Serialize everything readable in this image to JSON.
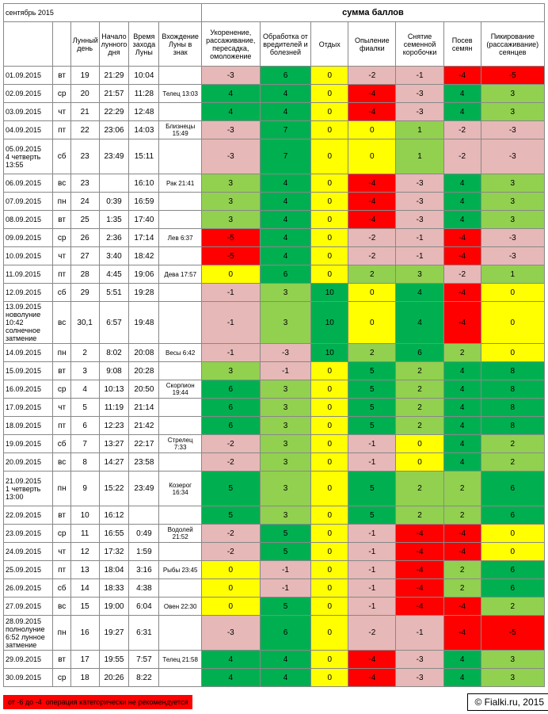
{
  "month_title": "сентябрь 2015",
  "score_title": "сумма баллов",
  "headers": [
    "Лунный день",
    "Начало лунного дня",
    "Время захода Луны",
    "Вхождение Луны в знак",
    "Укоренение, рассаживание, пересадка, омоложение",
    "Обработка от вредителей и болезней",
    "Отдых",
    "Опыление фиалки",
    "Снятие семенной коробочки",
    "Посев семян",
    "Пикирование (рассаживание) сеянцев"
  ],
  "rows": [
    {
      "date": "01.09.2015",
      "dow": "вт",
      "d": "19",
      "t1": "21:29",
      "t2": "10:04",
      "sign": "",
      "v": [
        -3,
        6,
        0,
        -2,
        -1,
        -4,
        -5
      ]
    },
    {
      "date": "02.09.2015",
      "dow": "ср",
      "d": "20",
      "t1": "21:57",
      "t2": "11:28",
      "sign": "Телец 13:03",
      "v": [
        4,
        4,
        0,
        -4,
        -3,
        4,
        3
      ]
    },
    {
      "date": "03.09.2015",
      "dow": "чт",
      "d": "21",
      "t1": "22:29",
      "t2": "12:48",
      "sign": "",
      "v": [
        4,
        4,
        0,
        -4,
        -3,
        4,
        3
      ]
    },
    {
      "date": "04.09.2015",
      "dow": "пт",
      "d": "22",
      "t1": "23:06",
      "t2": "14:03",
      "sign": "Близнецы 15:49",
      "v": [
        -3,
        7,
        0,
        0,
        1,
        -2,
        -3
      ]
    },
    {
      "date": "05.09.2015\n4 четверть 13:55",
      "dow": "сб",
      "d": "23",
      "t1": "23:49",
      "t2": "15:11",
      "sign": "",
      "v": [
        -3,
        7,
        0,
        0,
        1,
        -2,
        -3
      ]
    },
    {
      "date": "06.09.2015",
      "dow": "вс",
      "d": "23",
      "t1": "",
      "t2": "16:10",
      "sign": "Рак 21:41",
      "v": [
        3,
        4,
        0,
        -4,
        -3,
        4,
        3
      ]
    },
    {
      "date": "07.09.2015",
      "dow": "пн",
      "d": "24",
      "t1": "0:39",
      "t2": "16:59",
      "sign": "",
      "v": [
        3,
        4,
        0,
        -4,
        -3,
        4,
        3
      ]
    },
    {
      "date": "08.09.2015",
      "dow": "вт",
      "d": "25",
      "t1": "1:35",
      "t2": "17:40",
      "sign": "",
      "v": [
        3,
        4,
        0,
        -4,
        -3,
        4,
        3
      ]
    },
    {
      "date": "09.09.2015",
      "dow": "ср",
      "d": "26",
      "t1": "2:36",
      "t2": "17:14",
      "sign": "Лев 6:37",
      "v": [
        -5,
        4,
        0,
        -2,
        -1,
        -4,
        -3
      ]
    },
    {
      "date": "10.09.2015",
      "dow": "чт",
      "d": "27",
      "t1": "3:40",
      "t2": "18:42",
      "sign": "",
      "v": [
        -5,
        4,
        0,
        -2,
        -1,
        -4,
        -3
      ]
    },
    {
      "date": "11.09.2015",
      "dow": "пт",
      "d": "28",
      "t1": "4:45",
      "t2": "19:06",
      "sign": "Дева 17:57",
      "v": [
        0,
        6,
        0,
        2,
        3,
        -2,
        1
      ]
    },
    {
      "date": "12.09.2015",
      "dow": "сб",
      "d": "29",
      "t1": "5:51",
      "t2": "19:28",
      "sign": "",
      "v": [
        -1,
        3,
        10,
        0,
        4,
        -4,
        0
      ]
    },
    {
      "date": "13.09.2015\nноволуние 10:42 солнечное затмение",
      "dow": "вс",
      "d": "30,1",
      "t1": "6:57",
      "t2": "19:48",
      "sign": "",
      "v": [
        -1,
        3,
        10,
        0,
        4,
        -4,
        0
      ]
    },
    {
      "date": "14.09.2015",
      "dow": "пн",
      "d": "2",
      "t1": "8:02",
      "t2": "20:08",
      "sign": "Весы 6:42",
      "v": [
        -1,
        -3,
        10,
        2,
        6,
        2,
        0
      ]
    },
    {
      "date": "15.09.2015",
      "dow": "вт",
      "d": "3",
      "t1": "9:08",
      "t2": "20:28",
      "sign": "",
      "v": [
        3,
        -1,
        0,
        5,
        2,
        4,
        8
      ]
    },
    {
      "date": "16.09.2015",
      "dow": "ср",
      "d": "4",
      "t1": "10:13",
      "t2": "20:50",
      "sign": "Скорпион 19:44",
      "v": [
        6,
        3,
        0,
        5,
        2,
        4,
        8
      ]
    },
    {
      "date": "17.09.2015",
      "dow": "чт",
      "d": "5",
      "t1": "11:19",
      "t2": "21:14",
      "sign": "",
      "v": [
        6,
        3,
        0,
        5,
        2,
        4,
        8
      ]
    },
    {
      "date": "18.09.2015",
      "dow": "пт",
      "d": "6",
      "t1": "12:23",
      "t2": "21:42",
      "sign": "",
      "v": [
        6,
        3,
        0,
        5,
        2,
        4,
        8
      ]
    },
    {
      "date": "19.09.2015",
      "dow": "сб",
      "d": "7",
      "t1": "13:27",
      "t2": "22:17",
      "sign": "Стрелец 7:33",
      "v": [
        -2,
        3,
        0,
        -1,
        0,
        4,
        2
      ]
    },
    {
      "date": "20.09.2015",
      "dow": "вс",
      "d": "8",
      "t1": "14:27",
      "t2": "23:58",
      "sign": "",
      "v": [
        -2,
        3,
        0,
        -1,
        0,
        4,
        2
      ]
    },
    {
      "date": "21.09.2015\n1 четверть 13:00",
      "dow": "пн",
      "d": "9",
      "t1": "15:22",
      "t2": "23:49",
      "sign": "Козерог 16:34",
      "v": [
        5,
        3,
        0,
        5,
        2,
        2,
        6
      ]
    },
    {
      "date": "22.09.2015",
      "dow": "вт",
      "d": "10",
      "t1": "16:12",
      "t2": "",
      "sign": "",
      "v": [
        5,
        3,
        0,
        5,
        2,
        2,
        6
      ]
    },
    {
      "date": "23.09.2015",
      "dow": "ср",
      "d": "11",
      "t1": "16:55",
      "t2": "0:49",
      "sign": "Водолей 21:52",
      "v": [
        -2,
        5,
        0,
        -1,
        -4,
        -4,
        0
      ]
    },
    {
      "date": "24.09.2015",
      "dow": "чт",
      "d": "12",
      "t1": "17:32",
      "t2": "1:59",
      "sign": "",
      "v": [
        -2,
        5,
        0,
        -1,
        -4,
        -4,
        0
      ]
    },
    {
      "date": "25.09.2015",
      "dow": "пт",
      "d": "13",
      "t1": "18:04",
      "t2": "3:16",
      "sign": "Рыбы 23:45",
      "v": [
        0,
        -1,
        0,
        -1,
        -4,
        2,
        6
      ]
    },
    {
      "date": "26.09.2015",
      "dow": "сб",
      "d": "14",
      "t1": "18:33",
      "t2": "4:38",
      "sign": "",
      "v": [
        0,
        -1,
        0,
        -1,
        -4,
        2,
        6
      ]
    },
    {
      "date": "27.09.2015",
      "dow": "вс",
      "d": "15",
      "t1": "19:00",
      "t2": "6:04",
      "sign": "Овен 22:30",
      "v": [
        0,
        5,
        0,
        -1,
        -4,
        -4,
        2
      ]
    },
    {
      "date": "28.09.2015\nполнолуние 6:52 лунное затмение",
      "dow": "пн",
      "d": "16",
      "t1": "19:27",
      "t2": "6:31",
      "sign": "",
      "v": [
        -3,
        6,
        0,
        -2,
        -1,
        -4,
        -5
      ]
    },
    {
      "date": "29.09.2015",
      "dow": "вт",
      "d": "17",
      "t1": "19:55",
      "t2": "7:57",
      "sign": "Телец 21:58",
      "v": [
        4,
        4,
        0,
        -4,
        -3,
        4,
        3
      ]
    },
    {
      "date": "30.09.2015",
      "dow": "ср",
      "d": "18",
      "t1": "20:26",
      "t2": "8:22",
      "sign": "",
      "v": [
        4,
        4,
        0,
        -4,
        -3,
        4,
        3
      ]
    }
  ],
  "legend_range": "от -6 до -4",
  "legend_text": "операция категорически не рекомендуется",
  "copyright": "© Fialki.ru, 2015"
}
